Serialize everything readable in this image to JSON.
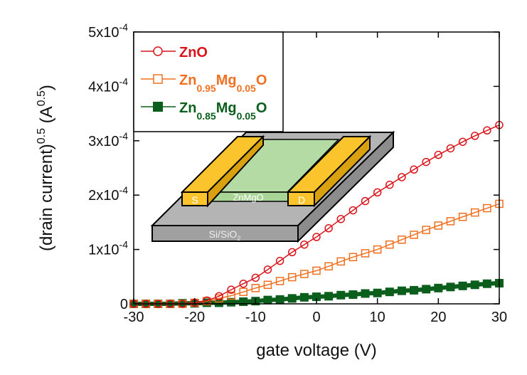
{
  "chart_data": {
    "type": "line",
    "xlabel": "gate voltage (V)",
    "ylabel": {
      "base": "(drain current)",
      "exp": "0.5",
      "unit": " (A",
      "unit_exp": "0.5",
      "close": ")"
    },
    "xlim": [
      -30,
      30
    ],
    "ylim": [
      0,
      0.0005
    ],
    "x_ticks": [
      "-30",
      "-20",
      "-10",
      "0",
      "10",
      "20",
      "30"
    ],
    "y_ticks": [
      {
        "value": 0,
        "label": "0",
        "exp": ""
      },
      {
        "value": 0.0001,
        "label": "1x10",
        "exp": "-4"
      },
      {
        "value": 0.0002,
        "label": "2x10",
        "exp": "-4"
      },
      {
        "value": 0.0003,
        "label": "3x10",
        "exp": "-4"
      },
      {
        "value": 0.0004,
        "label": "4x10",
        "exp": "-4"
      },
      {
        "value": 0.0005,
        "label": "5x10",
        "exp": "-4"
      }
    ],
    "grid": false,
    "legend_position": "top-left",
    "x": [
      -30,
      -28,
      -26,
      -24,
      -22,
      -20,
      -18,
      -16,
      -14,
      -12,
      -10,
      -8,
      -6,
      -4,
      -2,
      0,
      2,
      4,
      6,
      8,
      10,
      12,
      14,
      16,
      18,
      20,
      22,
      24,
      26,
      28,
      30
    ],
    "series": [
      {
        "name_parts": [
          [
            "ZnO",
            ""
          ]
        ],
        "color": "#d9141c",
        "marker": "open-circle",
        "values": [
          0,
          0,
          0,
          0,
          0,
          2e-06,
          6e-06,
          1.4e-05,
          2.6e-05,
          3.7e-05,
          4.8e-05,
          6.3e-05,
          7.9e-05,
          9.5e-05,
          0.000109,
          0.000123,
          0.000139,
          0.000156,
          0.000172,
          0.000189,
          0.000205,
          0.000219,
          0.000233,
          0.000247,
          0.000261,
          0.000274,
          0.000286,
          0.000298,
          0.000309,
          0.000319,
          0.000329
        ]
      },
      {
        "name_parts": [
          [
            "Zn",
            "0.95"
          ],
          [
            "Mg",
            "0.05"
          ],
          [
            "O",
            ""
          ]
        ],
        "color": "#f07020",
        "marker": "open-square",
        "values": [
          0,
          0,
          0,
          0,
          0,
          2e-06,
          5e-06,
          1e-05,
          1.5e-05,
          2.2e-05,
          2.9e-05,
          3.5e-05,
          4.2e-05,
          4.9e-05,
          5.5e-05,
          6.1e-05,
          6.9e-05,
          7.8e-05,
          8.6e-05,
          9.3e-05,
          0.0001,
          0.000109,
          0.000118,
          0.000127,
          0.000136,
          0.000144,
          0.000152,
          0.00016,
          0.000168,
          0.000176,
          0.000184
        ]
      },
      {
        "name_parts": [
          [
            "Zn",
            "0.85"
          ],
          [
            "Mg",
            "0.05"
          ],
          [
            "O",
            ""
          ]
        ],
        "color": "#0b5e1c",
        "marker": "filled-square",
        "values": [
          0,
          0,
          0,
          0,
          1e-06,
          1e-06,
          2e-06,
          2e-06,
          3e-06,
          4e-06,
          5e-06,
          7e-06,
          8e-06,
          1e-05,
          1.2e-05,
          1.3e-05,
          1.4e-05,
          1.6e-05,
          1.7e-05,
          1.9e-05,
          2e-05,
          2.2e-05,
          2.4e-05,
          2.5e-05,
          2.7e-05,
          2.9e-05,
          3.1e-05,
          3.3e-05,
          3.5e-05,
          3.7e-05,
          3.8e-05
        ]
      }
    ]
  },
  "inset": {
    "source_label": "S",
    "drain_label": "D",
    "channel_label": "ZnMgO",
    "substrate_label": "Si/SiO",
    "substrate_sub": "2",
    "colors": {
      "electrode": "#fcc42c",
      "channel": "#b5dba5",
      "substrate": "#a8a8a8"
    }
  }
}
